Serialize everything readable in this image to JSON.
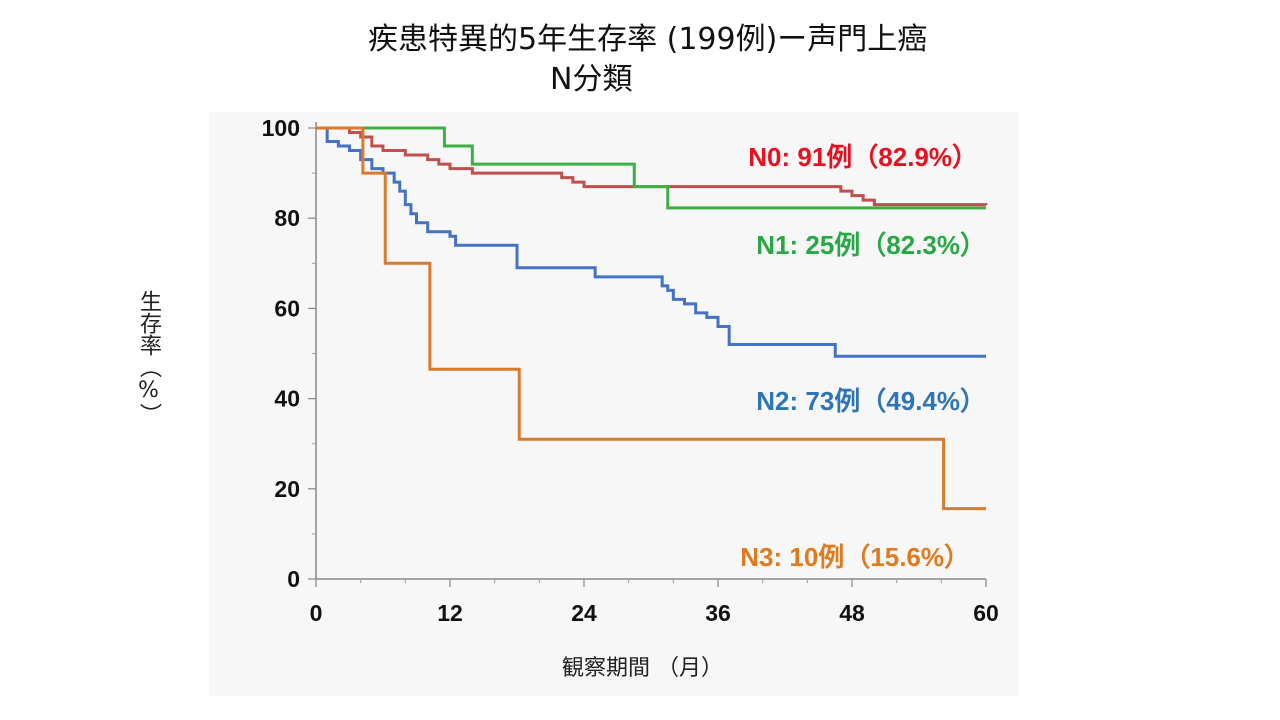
{
  "chart_data": {
    "type": "line",
    "step": true,
    "title": "疾患特異的5年生存率 (199例)ー声門上癌",
    "subtitle": "N分類",
    "xlabel": "観察期間 （月）",
    "ylabel": "生存率（%）",
    "xlim": [
      0,
      60
    ],
    "ylim": [
      0,
      100
    ],
    "xticks": [
      0,
      12,
      24,
      36,
      48,
      60
    ],
    "yticks": [
      0,
      20,
      40,
      60,
      80,
      100
    ],
    "grid": false,
    "series": [
      {
        "name": "N0",
        "label": "N0: 91例（82.9%）",
        "color": "#c0504d",
        "label_color": "#e8101e",
        "points": [
          [
            0,
            100
          ],
          [
            2,
            100
          ],
          [
            3,
            99
          ],
          [
            4,
            98
          ],
          [
            5,
            96
          ],
          [
            6,
            95
          ],
          [
            8,
            94
          ],
          [
            10,
            93
          ],
          [
            11,
            92
          ],
          [
            12,
            91
          ],
          [
            14,
            90
          ],
          [
            22,
            89
          ],
          [
            23,
            88
          ],
          [
            24,
            87
          ],
          [
            35,
            87
          ],
          [
            46,
            87
          ],
          [
            47,
            86
          ],
          [
            48,
            85
          ],
          [
            49,
            84
          ],
          [
            50,
            83
          ],
          [
            60,
            82.9
          ]
        ]
      },
      {
        "name": "N1",
        "label": "N1: 25例（82.3%）",
        "color": "#3cb043",
        "label_color": "#27a844",
        "points": [
          [
            0,
            100
          ],
          [
            11,
            100
          ],
          [
            11.5,
            96
          ],
          [
            14,
            92
          ],
          [
            28,
            92
          ],
          [
            28.5,
            87
          ],
          [
            31,
            87
          ],
          [
            31.5,
            82.3
          ],
          [
            60,
            82.3
          ]
        ]
      },
      {
        "name": "N2",
        "label": "N2: 73例（49.4%）",
        "color": "#4472c4",
        "label_color": "#2e75b6",
        "points": [
          [
            0,
            100
          ],
          [
            1,
            97
          ],
          [
            2,
            96
          ],
          [
            3,
            95
          ],
          [
            4,
            93
          ],
          [
            5,
            91
          ],
          [
            6,
            90
          ],
          [
            7,
            88
          ],
          [
            7.5,
            86
          ],
          [
            8,
            83
          ],
          [
            8.5,
            81
          ],
          [
            9,
            79
          ],
          [
            10,
            77
          ],
          [
            12,
            76
          ],
          [
            12.5,
            74
          ],
          [
            16,
            74
          ],
          [
            18,
            69
          ],
          [
            22,
            69
          ],
          [
            25,
            67
          ],
          [
            30,
            67
          ],
          [
            31,
            65
          ],
          [
            31.5,
            64
          ],
          [
            32,
            62
          ],
          [
            33,
            61
          ],
          [
            34,
            59
          ],
          [
            35,
            58
          ],
          [
            36,
            56
          ],
          [
            37,
            52
          ],
          [
            46,
            52
          ],
          [
            46.5,
            49.4
          ],
          [
            60,
            49.4
          ]
        ]
      },
      {
        "name": "N3",
        "label": "N3: 10例（15.6%）",
        "color": "#d97b2b",
        "label_color": "#e07a1f",
        "points": [
          [
            0,
            100
          ],
          [
            4,
            100
          ],
          [
            4.2,
            90
          ],
          [
            6,
            90
          ],
          [
            6.2,
            70
          ],
          [
            10,
            70
          ],
          [
            10.2,
            46.5
          ],
          [
            18,
            46.5
          ],
          [
            18.2,
            31
          ],
          [
            56,
            31
          ],
          [
            56.2,
            15.6
          ],
          [
            60,
            15.6
          ]
        ]
      }
    ]
  }
}
